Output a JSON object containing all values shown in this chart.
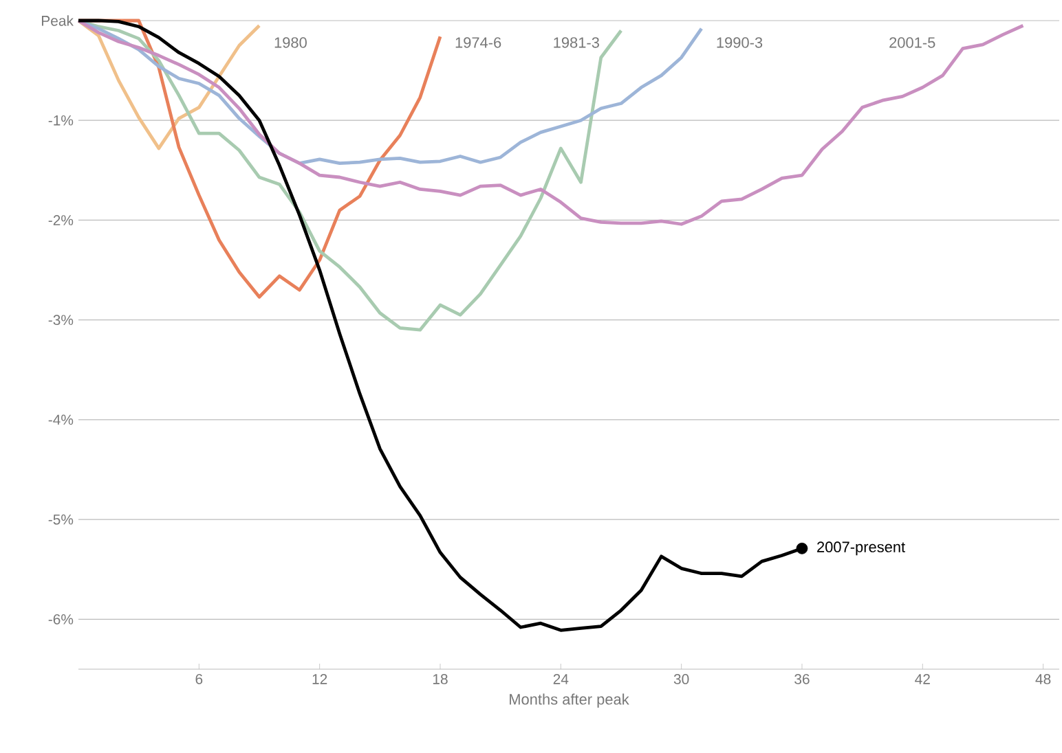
{
  "chart_data": {
    "type": "line",
    "xlabel": "Months after peak",
    "x": [
      0,
      1,
      2,
      3,
      4,
      5,
      6,
      7,
      8,
      9,
      10,
      11,
      12,
      13,
      14,
      15,
      16,
      17,
      18,
      19,
      20,
      21,
      22,
      23,
      24,
      25,
      26,
      27,
      28,
      29,
      30,
      31,
      32,
      33,
      34,
      35,
      36,
      37,
      38,
      39,
      40,
      41,
      42,
      43,
      44,
      45,
      46,
      47
    ],
    "xlim": [
      0,
      48.8
    ],
    "ylim": [
      -6.5,
      0
    ],
    "xticks": [
      6,
      12,
      18,
      24,
      30,
      36,
      42,
      48
    ],
    "yticks": [
      {
        "value": 0,
        "label": "Peak"
      },
      {
        "value": -1,
        "label": "-1%"
      },
      {
        "value": -2,
        "label": "-2%"
      },
      {
        "value": -3,
        "label": "-3%"
      },
      {
        "value": -4,
        "label": "-4%"
      },
      {
        "value": -5,
        "label": "-5%"
      },
      {
        "value": -6,
        "label": "-6%"
      }
    ],
    "grid": "y",
    "series": [
      {
        "name": "1980",
        "color": "#f0c08a",
        "values": [
          0,
          -0.15,
          -0.6,
          -0.97,
          -1.28,
          -0.98,
          -0.87,
          -0.56,
          -0.25,
          -0.05,
          null,
          null,
          null,
          null,
          null,
          null,
          null,
          null,
          null,
          null,
          null,
          null,
          null,
          null,
          null,
          null,
          null,
          null,
          null,
          null,
          null,
          null,
          null,
          null,
          null,
          null,
          null,
          null,
          null,
          null,
          null,
          null,
          null,
          null,
          null,
          null,
          null,
          null
        ]
      },
      {
        "name": "1974-6",
        "color": "#e8805a",
        "values": [
          0,
          0,
          0,
          0,
          -0.47,
          -1.27,
          -1.75,
          -2.2,
          -2.52,
          -2.77,
          -2.56,
          -2.7,
          -2.4,
          -1.9,
          -1.76,
          -1.4,
          -1.15,
          -0.77,
          -0.16,
          null,
          null,
          null,
          null,
          null,
          null,
          null,
          null,
          null,
          null,
          null,
          null,
          null,
          null,
          null,
          null,
          null,
          null,
          null,
          null,
          null,
          null,
          null,
          null,
          null,
          null,
          null,
          null,
          null
        ]
      },
      {
        "name": "1981-3",
        "color": "#a8cbb0",
        "values": [
          0,
          -0.06,
          -0.1,
          -0.18,
          -0.4,
          -0.75,
          -1.13,
          -1.13,
          -1.3,
          -1.57,
          -1.64,
          -1.92,
          -2.31,
          -2.47,
          -2.67,
          -2.93,
          -3.08,
          -3.1,
          -2.85,
          -2.95,
          -2.74,
          -2.45,
          -2.16,
          -1.78,
          -1.28,
          -1.62,
          -0.37,
          -0.1,
          null,
          null,
          null,
          null,
          null,
          null,
          null,
          null,
          null,
          null,
          null,
          null,
          null,
          null,
          null,
          null,
          null,
          null,
          null,
          null
        ]
      },
      {
        "name": "1990-3",
        "color": "#9db5d8",
        "values": [
          0,
          -0.08,
          -0.18,
          -0.29,
          -0.46,
          -0.58,
          -0.63,
          -0.75,
          -0.98,
          -1.16,
          -1.33,
          -1.43,
          -1.39,
          -1.43,
          -1.42,
          -1.39,
          -1.38,
          -1.42,
          -1.41,
          -1.36,
          -1.42,
          -1.37,
          -1.22,
          -1.12,
          -1.06,
          -1.0,
          -0.88,
          -0.83,
          -0.67,
          -0.55,
          -0.37,
          -0.08,
          null,
          null,
          null,
          null,
          null,
          null,
          null,
          null,
          null,
          null,
          null,
          null,
          null,
          null,
          null,
          null
        ]
      },
      {
        "name": "2001-5",
        "color": "#c98fc0",
        "values": [
          0,
          -0.12,
          -0.21,
          -0.27,
          -0.35,
          -0.44,
          -0.54,
          -0.67,
          -0.88,
          -1.14,
          -1.33,
          -1.43,
          -1.55,
          -1.57,
          -1.62,
          -1.66,
          -1.62,
          -1.69,
          -1.71,
          -1.75,
          -1.66,
          -1.65,
          -1.75,
          -1.69,
          -1.82,
          -1.98,
          -2.02,
          -2.03,
          -2.03,
          -2.01,
          -2.04,
          -1.96,
          -1.81,
          -1.79,
          -1.69,
          -1.58,
          -1.55,
          -1.29,
          -1.11,
          -0.87,
          -0.8,
          -0.76,
          -0.67,
          -0.55,
          -0.28,
          -0.24,
          -0.14,
          -0.05
        ]
      },
      {
        "name": "2007-present",
        "color": "#000000",
        "values": [
          0,
          0,
          -0.01,
          -0.06,
          -0.17,
          -0.32,
          -0.43,
          -0.56,
          -0.75,
          -1.0,
          -1.45,
          -1.95,
          -2.5,
          -3.14,
          -3.74,
          -4.29,
          -4.67,
          -4.96,
          -5.33,
          -5.58,
          -5.75,
          -5.91,
          -6.08,
          -6.04,
          -6.11,
          -6.09,
          -6.07,
          -5.91,
          -5.71,
          -5.37,
          -5.49,
          -5.54,
          -5.54,
          -5.57,
          -5.42,
          -5.36,
          -5.29,
          null,
          null,
          null,
          null,
          null,
          null,
          null,
          null,
          null,
          null,
          null
        ]
      },
      {
        "type": "scatter",
        "color": "#000000",
        "x": [
          36
        ],
        "values": [
          -5.29
        ]
      }
    ]
  }
}
